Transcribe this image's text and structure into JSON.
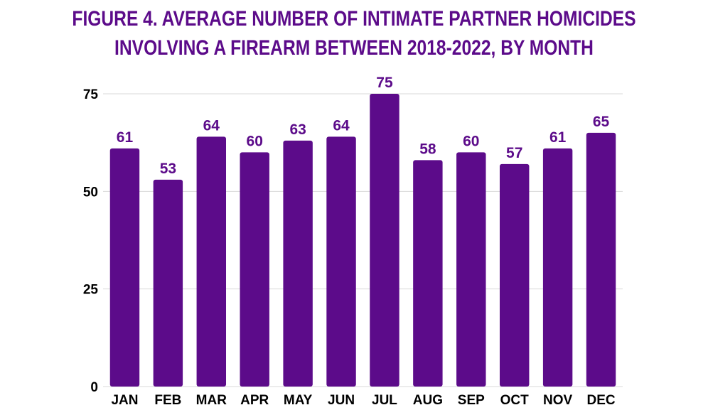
{
  "chart_data": {
    "type": "bar",
    "title_lines": [
      "FIGURE 4. AVERAGE NUMBER OF INTIMATE PARTNER HOMICIDES",
      "INVOLVING A FIREARM BETWEEN 2018-2022, BY MONTH"
    ],
    "categories": [
      "JAN",
      "FEB",
      "MAR",
      "APR",
      "MAY",
      "JUN",
      "JUL",
      "AUG",
      "SEP",
      "OCT",
      "NOV",
      "DEC"
    ],
    "values": [
      61,
      53,
      64,
      60,
      63,
      64,
      75,
      58,
      60,
      57,
      61,
      65
    ],
    "data_labels": [
      "61",
      "53",
      "64",
      "60",
      "63",
      "64",
      "75",
      "58",
      "60",
      "57",
      "61",
      "65"
    ],
    "xlabel": "",
    "ylabel": "",
    "ylim": [
      0,
      75
    ],
    "yticks": [
      0,
      25,
      50,
      75
    ],
    "grid": true,
    "legend": "none",
    "colors": {
      "bar": "#5c0b8a",
      "title": "#5c0b8a",
      "data_label": "#5c0b8a",
      "axis_text": "#000000",
      "grid": "#d9d9d9"
    }
  }
}
